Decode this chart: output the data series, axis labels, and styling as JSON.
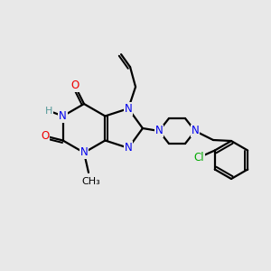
{
  "background_color": "#e8e8e8",
  "bond_color": "#000000",
  "atom_colors": {
    "N": "#0000ee",
    "O": "#ee0000",
    "Cl": "#00aa00",
    "H": "#559999",
    "C": "#000000"
  },
  "figsize": [
    3.0,
    3.0
  ],
  "dpi": 100
}
